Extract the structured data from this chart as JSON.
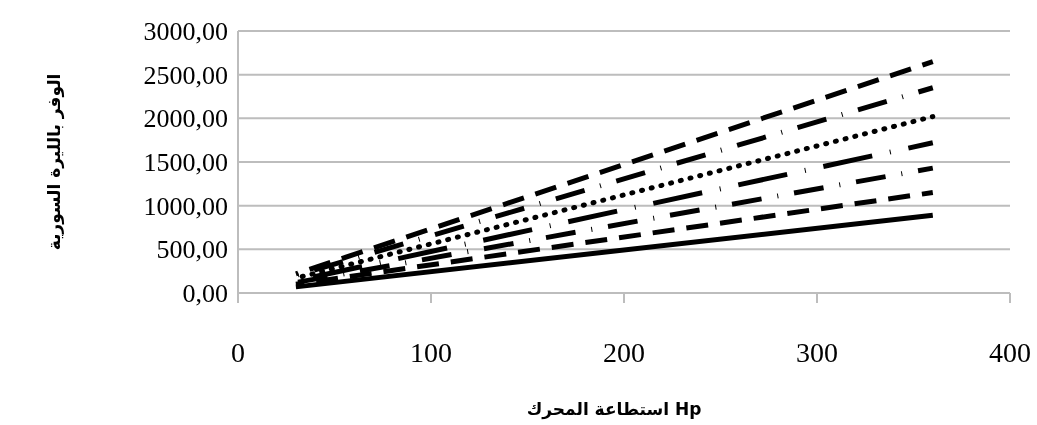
{
  "chart_data": {
    "type": "line",
    "xlabel": "استطاعة المحرك Hp",
    "ylabel": "الوفر بالليرة السورية",
    "xlim": [
      0,
      400
    ],
    "xticks": [
      0,
      100,
      200,
      300,
      400
    ],
    "ylim": [
      0,
      3000
    ],
    "yticks": [
      {
        "value": 0,
        "label": "0,00"
      },
      {
        "value": 500,
        "label": "500,00"
      },
      {
        "value": 1000,
        "label": "1000,00"
      },
      {
        "value": 1500,
        "label": "1500,00"
      },
      {
        "value": 2000,
        "label": "2000,00"
      },
      {
        "value": 2500,
        "label": "2500,00"
      },
      {
        "value": 3000,
        "label": "3000,00"
      }
    ],
    "grid": "y",
    "marker": "none",
    "x": [
      30,
      360
    ],
    "series": [
      {
        "color": "#000000",
        "line_style": "dashed",
        "values": [
          220,
          2650
        ]
      },
      {
        "color": "#000000",
        "line_style": "dashdot",
        "values": [
          200,
          2350
        ]
      },
      {
        "color": "#000000",
        "line_style": "dotted",
        "values": [
          170,
          2020
        ]
      },
      {
        "color": "#000000",
        "line_style": "longdashdot",
        "values": [
          140,
          1720
        ]
      },
      {
        "color": "#000000",
        "line_style": "dashdot",
        "values": [
          120,
          1430
        ]
      },
      {
        "color": "#000000",
        "line_style": "dashed",
        "values": [
          100,
          1150
        ]
      },
      {
        "color": "#000000",
        "line_style": "solid",
        "values": [
          70,
          890
        ]
      }
    ]
  }
}
